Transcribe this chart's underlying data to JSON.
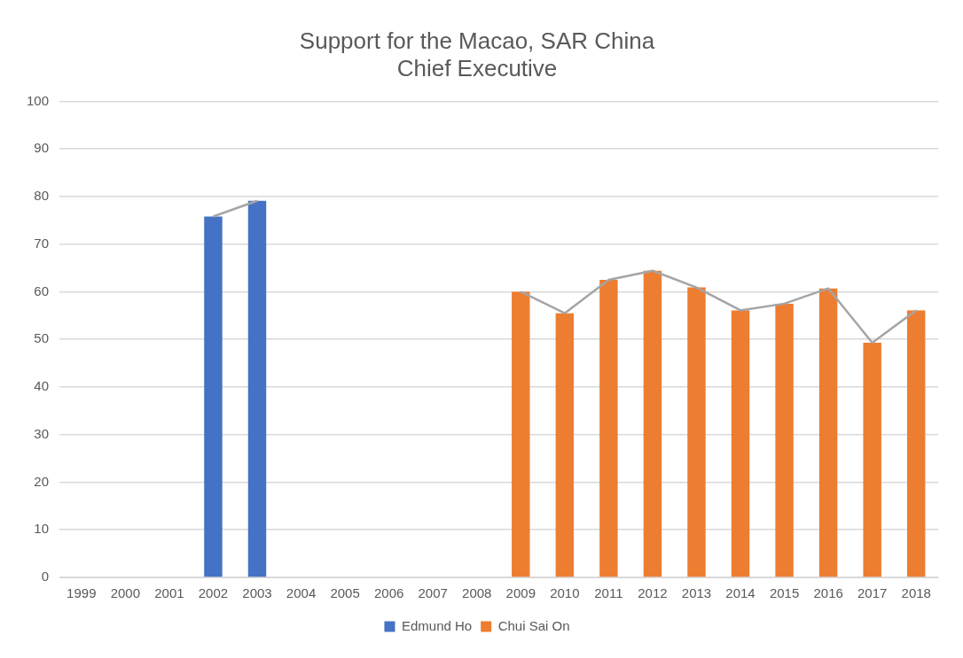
{
  "chart_data": {
    "type": "bar",
    "title": "Support for the Macao, SAR China\nChief Executive",
    "categories": [
      "1999",
      "2000",
      "2001",
      "2002",
      "2003",
      "2004",
      "2005",
      "2006",
      "2007",
      "2008",
      "2009",
      "2010",
      "2011",
      "2012",
      "2013",
      "2014",
      "2015",
      "2016",
      "2017",
      "2018"
    ],
    "series": [
      {
        "name": "Edmund Ho",
        "color": "#4472c4",
        "values": [
          null,
          null,
          null,
          75.8,
          79.1,
          null,
          null,
          null,
          null,
          null,
          null,
          null,
          null,
          null,
          null,
          null,
          null,
          null,
          null,
          null
        ]
      },
      {
        "name": "Chui Sai On",
        "color": "#ed7d31",
        "values": [
          null,
          null,
          null,
          null,
          null,
          null,
          null,
          null,
          null,
          null,
          60.0,
          55.5,
          62.5,
          64.4,
          60.9,
          56.1,
          57.5,
          60.7,
          49.3,
          56.1
        ]
      },
      {
        "type": "line",
        "color": "#a5a5a5",
        "marker": "none",
        "values": [
          null,
          null,
          null,
          75.8,
          79.1,
          null,
          null,
          null,
          null,
          null,
          60.0,
          55.5,
          62.5,
          64.4,
          60.9,
          56.1,
          57.5,
          60.7,
          49.3,
          56.1
        ]
      }
    ],
    "ylim": [
      0,
      100
    ],
    "yticks": [
      0,
      10,
      20,
      30,
      40,
      50,
      60,
      70,
      80,
      90,
      100
    ],
    "grid": "y",
    "legend": "bottom"
  }
}
